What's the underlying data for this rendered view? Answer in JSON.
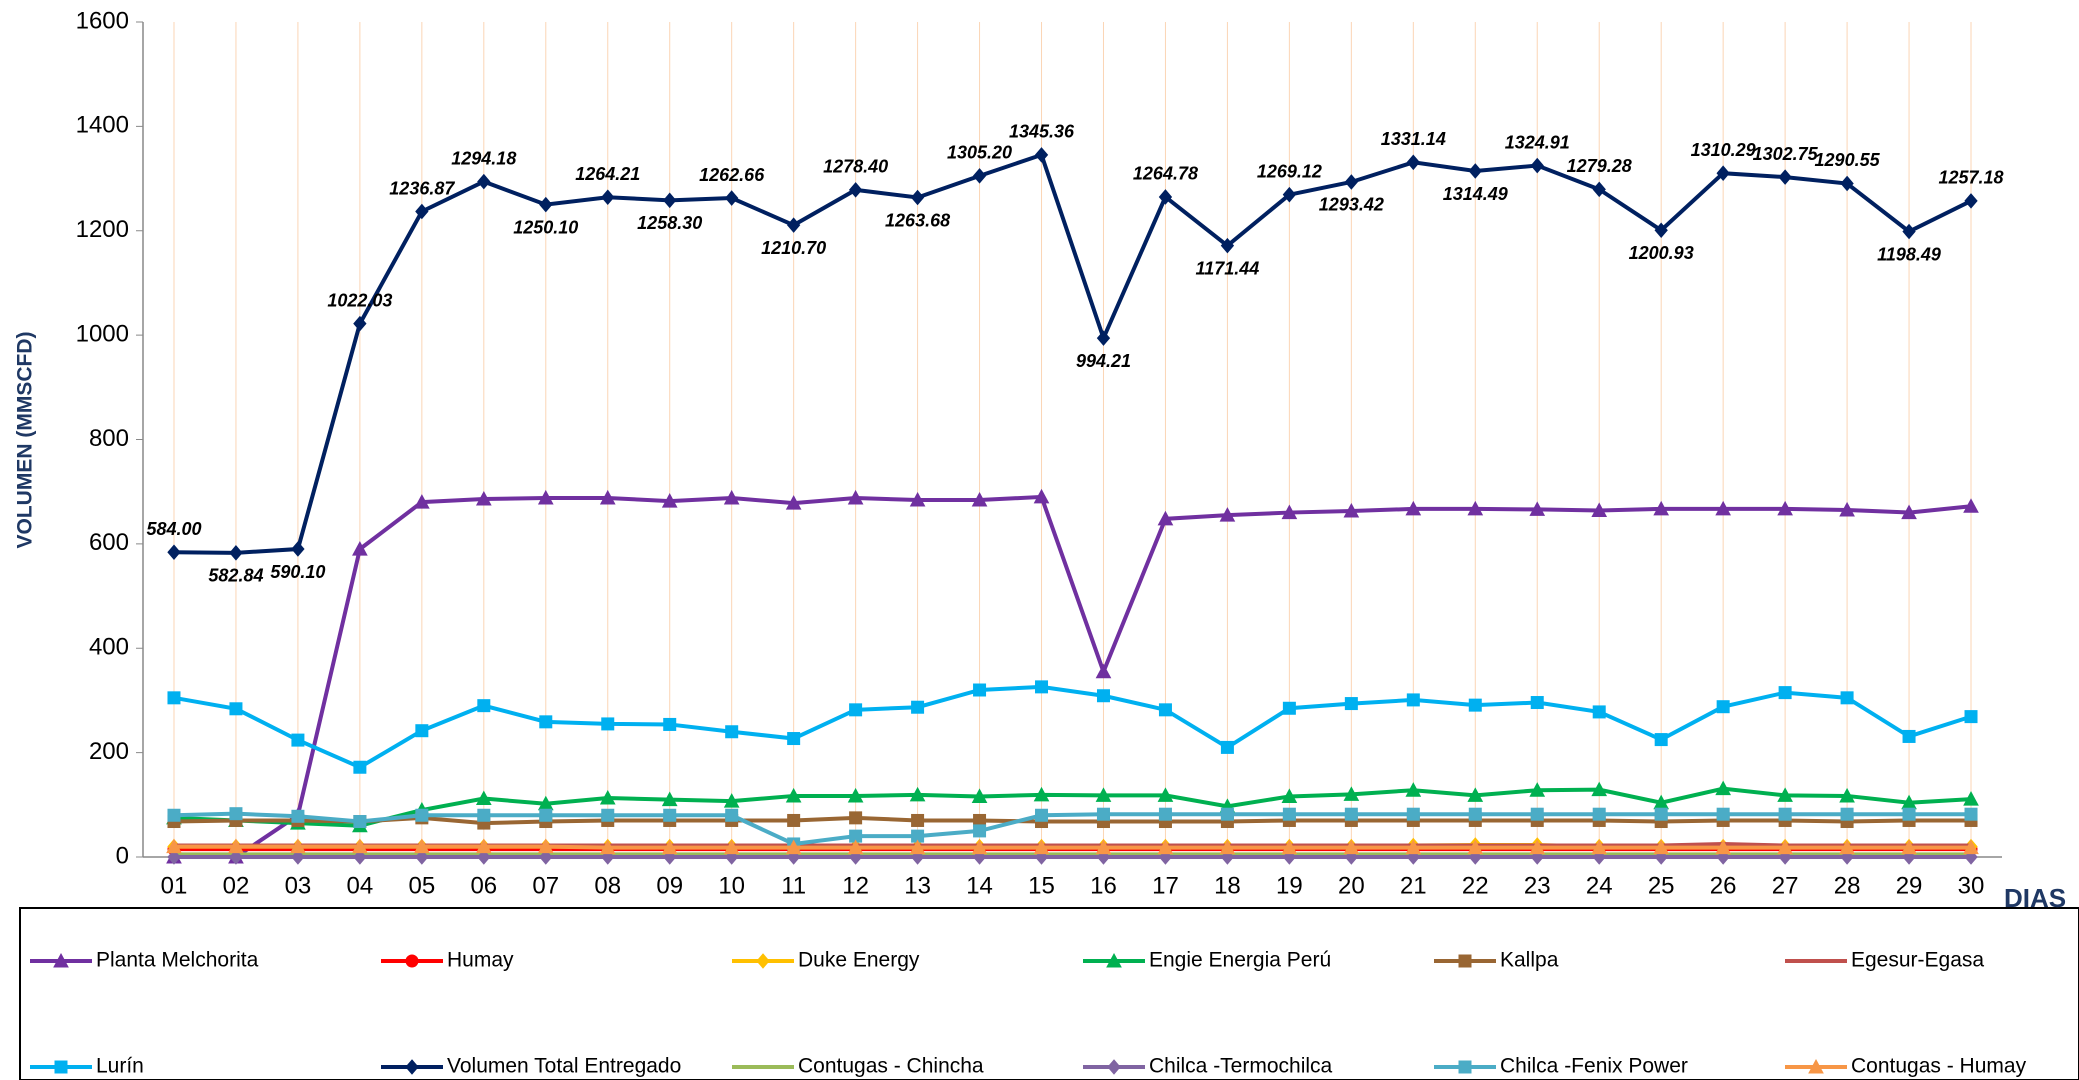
{
  "chart_data": {
    "type": "line",
    "y_label": "VOLUMEN (MMSCFD)",
    "x_label": "DIAS",
    "categories": [
      "01",
      "02",
      "03",
      "04",
      "05",
      "06",
      "07",
      "08",
      "09",
      "10",
      "11",
      "12",
      "13",
      "14",
      "15",
      "16",
      "17",
      "18",
      "19",
      "20",
      "21",
      "22",
      "23",
      "24",
      "25",
      "26",
      "27",
      "28",
      "29",
      "30"
    ],
    "ylim": [
      0,
      1600
    ],
    "yticks": [
      0,
      200,
      400,
      600,
      800,
      1000,
      1200,
      1400,
      1600
    ],
    "grid": "vertical",
    "legend": "bottom",
    "series": [
      {
        "name": "Planta Melchorita",
        "color": "#7030a0",
        "marker": "triangle",
        "values": [
          0,
          0,
          80,
          590,
          680,
          686,
          688,
          688,
          682,
          688,
          678,
          688,
          684,
          684,
          690,
          355,
          648,
          655,
          660,
          663,
          667,
          667,
          666,
          664,
          667,
          667,
          667,
          665,
          660,
          672
        ]
      },
      {
        "name": "Humay",
        "color": "#ff0000",
        "marker": "circle",
        "values": [
          15,
          15,
          15,
          15,
          15,
          15,
          15,
          15,
          15,
          15,
          15,
          15,
          15,
          15,
          15,
          15,
          15,
          15,
          15,
          15,
          15,
          15,
          15,
          15,
          15,
          15,
          15,
          15,
          15,
          15
        ]
      },
      {
        "name": "Duke Energy",
        "color": "#ffc000",
        "marker": "diamond",
        "values": [
          20,
          20,
          20,
          20,
          20,
          20,
          20,
          20,
          20,
          20,
          20,
          20,
          20,
          20,
          20,
          20,
          20,
          20,
          20,
          20,
          22,
          23,
          23,
          20,
          20,
          20,
          20,
          20,
          20,
          20
        ]
      },
      {
        "name": "Engie Energia Perú",
        "color": "#00b050",
        "marker": "triangle",
        "values": [
          75,
          70,
          65,
          60,
          90,
          112,
          102,
          113,
          110,
          107,
          117,
          117,
          119,
          116,
          119,
          118,
          118,
          97,
          116,
          120,
          128,
          118,
          128,
          129,
          104,
          131,
          118,
          117,
          104,
          111
        ]
      },
      {
        "name": "Kallpa",
        "color": "#996633",
        "marker": "square",
        "values": [
          68,
          70,
          70,
          68,
          75,
          65,
          68,
          70,
          70,
          70,
          70,
          75,
          70,
          70,
          68,
          68,
          68,
          68,
          70,
          70,
          70,
          70,
          70,
          70,
          68,
          70,
          70,
          68,
          70,
          70
        ]
      },
      {
        "name": "Egesur-Egasa",
        "color": "#c0504d",
        "marker": "none",
        "values": [
          22,
          22,
          22,
          22,
          22,
          22,
          22,
          22,
          22,
          22,
          22,
          22,
          22,
          22,
          22,
          22,
          22,
          22,
          22,
          22,
          22,
          22,
          22,
          22,
          22,
          25,
          22,
          22,
          22,
          22
        ]
      },
      {
        "name": "Lurín",
        "color": "#00b0f0",
        "marker": "square",
        "values": [
          305,
          284,
          224,
          172,
          242,
          290,
          259,
          255,
          254,
          240,
          227,
          282,
          287,
          320,
          326,
          309,
          282,
          210,
          285,
          294,
          301,
          291,
          296,
          278,
          225,
          288,
          315,
          305,
          231,
          269
        ]
      },
      {
        "name": "Volumen Total Entregado",
        "color": "#002060",
        "marker": "diamond",
        "values": [
          584.0,
          582.84,
          590.1,
          1022.03,
          1236.87,
          1294.18,
          1250.1,
          1264.21,
          1258.3,
          1262.66,
          1210.7,
          1278.4,
          1263.68,
          1305.2,
          1345.36,
          994.21,
          1264.78,
          1171.44,
          1269.12,
          1293.42,
          1331.14,
          1314.49,
          1324.91,
          1279.28,
          1200.93,
          1310.29,
          1302.75,
          1290.55,
          1198.49,
          1257.18
        ],
        "value_labels": [
          "584.00",
          "582.84",
          "590.10",
          "1022.03",
          "1236.87",
          "1294.18",
          "1250.10",
          "1264.21",
          "1258.30",
          "1262.66",
          "1210.70",
          "1278.40",
          "1263.68",
          "1305.20",
          "1345.36",
          "994.21",
          "1264.78",
          "1171.44",
          "1269.12",
          "1293.42",
          "1331.14",
          "1314.49",
          "1324.91",
          "1279.28",
          "1200.93",
          "1310.29",
          "1302.75",
          "1290.55",
          "1198.49",
          "1257.18"
        ]
      },
      {
        "name": "Contugas - Chincha",
        "color": "#9bbb59",
        "marker": "none",
        "values": [
          5,
          5,
          5,
          5,
          5,
          5,
          5,
          5,
          5,
          5,
          5,
          5,
          5,
          5,
          5,
          5,
          5,
          5,
          5,
          5,
          5,
          5,
          5,
          5,
          5,
          5,
          5,
          5,
          5,
          5
        ]
      },
      {
        "name": "Chilca -Termochilca",
        "color": "#8064a2",
        "marker": "diamond",
        "values": [
          0,
          0,
          0,
          0,
          0,
          0,
          0,
          0,
          0,
          0,
          0,
          0,
          0,
          0,
          0,
          0,
          0,
          0,
          0,
          0,
          0,
          0,
          0,
          0,
          0,
          0,
          0,
          0,
          0,
          0
        ]
      },
      {
        "name": "Chilca -Fenix Power",
        "color": "#4bacc6",
        "marker": "square",
        "values": [
          80,
          83,
          78,
          68,
          80,
          80,
          80,
          80,
          80,
          80,
          25,
          40,
          40,
          50,
          80,
          82,
          82,
          82,
          82,
          82,
          82,
          82,
          82,
          82,
          82,
          82,
          82,
          82,
          82,
          82
        ]
      },
      {
        "name": "Contugas - Humay",
        "color": "#f79646",
        "marker": "triangle",
        "values": [
          20,
          20,
          20,
          20,
          20,
          20,
          20,
          18,
          18,
          18,
          18,
          18,
          18,
          18,
          18,
          18,
          18,
          18,
          18,
          18,
          18,
          18,
          18,
          18,
          18,
          18,
          18,
          18,
          18,
          18
        ]
      }
    ]
  }
}
